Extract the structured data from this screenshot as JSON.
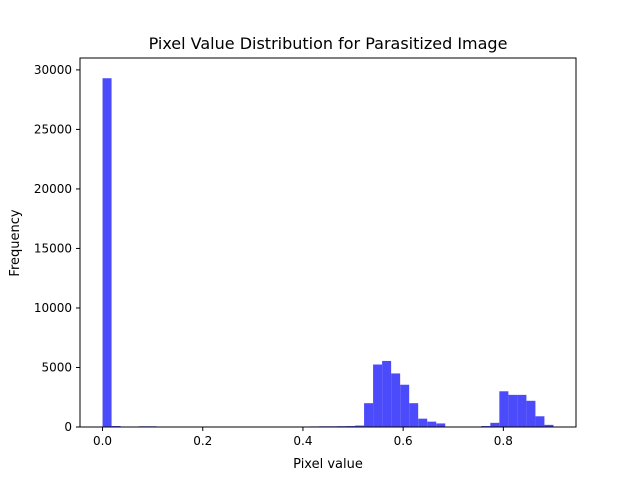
{
  "chart_data": {
    "type": "bar",
    "title": "Pixel Value Distribution for Parasitized Image",
    "xlabel": "Pixel value",
    "ylabel": "Frequency",
    "xlim": [
      -0.045,
      0.945
    ],
    "ylim": [
      0,
      31000
    ],
    "x_ticks": [
      0.0,
      0.2,
      0.4,
      0.6,
      0.8
    ],
    "x_tick_labels": [
      "0.0",
      "0.2",
      "0.4",
      "0.6",
      "0.8"
    ],
    "y_ticks": [
      0,
      5000,
      10000,
      15000,
      20000,
      25000,
      30000
    ],
    "y_tick_labels": [
      "0",
      "5000",
      "10000",
      "15000",
      "20000",
      "25000",
      "30000"
    ],
    "grid": false,
    "legend": "none",
    "color": "#4b4bfb",
    "bin_width": 0.018,
    "bin_edges_start": 0.0,
    "bins": [
      {
        "x": 0.0,
        "value": 29300
      },
      {
        "x": 0.018,
        "value": 80
      },
      {
        "x": 0.036,
        "value": 10
      },
      {
        "x": 0.072,
        "value": 60
      },
      {
        "x": 0.09,
        "value": 60
      },
      {
        "x": 0.342,
        "value": 40
      },
      {
        "x": 0.414,
        "value": 50
      },
      {
        "x": 0.432,
        "value": 60
      },
      {
        "x": 0.45,
        "value": 60
      },
      {
        "x": 0.468,
        "value": 70
      },
      {
        "x": 0.486,
        "value": 80
      },
      {
        "x": 0.504,
        "value": 120
      },
      {
        "x": 0.522,
        "value": 2000
      },
      {
        "x": 0.54,
        "value": 5250
      },
      {
        "x": 0.558,
        "value": 5550
      },
      {
        "x": 0.576,
        "value": 4500
      },
      {
        "x": 0.594,
        "value": 3550
      },
      {
        "x": 0.612,
        "value": 2000
      },
      {
        "x": 0.63,
        "value": 700
      },
      {
        "x": 0.648,
        "value": 450
      },
      {
        "x": 0.666,
        "value": 300
      },
      {
        "x": 0.756,
        "value": 80
      },
      {
        "x": 0.774,
        "value": 350
      },
      {
        "x": 0.792,
        "value": 3000
      },
      {
        "x": 0.81,
        "value": 2700
      },
      {
        "x": 0.828,
        "value": 2700
      },
      {
        "x": 0.846,
        "value": 2200
      },
      {
        "x": 0.864,
        "value": 900
      },
      {
        "x": 0.882,
        "value": 180
      }
    ]
  }
}
